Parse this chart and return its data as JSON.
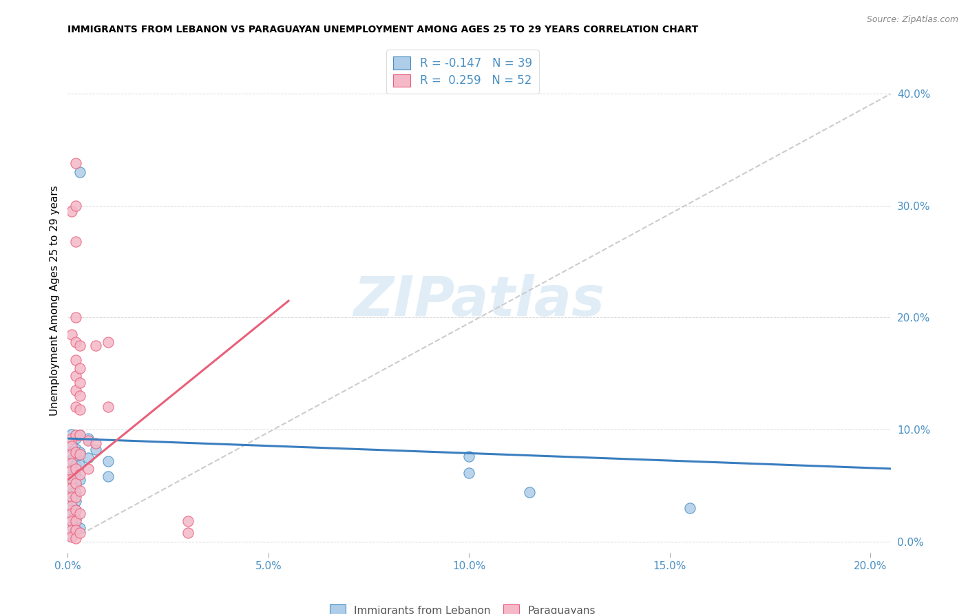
{
  "title": "IMMIGRANTS FROM LEBANON VS PARAGUAYAN UNEMPLOYMENT AMONG AGES 25 TO 29 YEARS CORRELATION CHART",
  "source": "Source: ZipAtlas.com",
  "ylabel": "Unemployment Among Ages 25 to 29 years",
  "xlim": [
    0,
    0.205
  ],
  "ylim": [
    -0.01,
    0.44
  ],
  "legend1_label": "R = -0.147   N = 39",
  "legend2_label": "R =  0.259   N = 52",
  "legend_bottom1": "Immigrants from Lebanon",
  "legend_bottom2": "Paraguayans",
  "blue_color": "#aecde8",
  "pink_color": "#f4b8c8",
  "blue_edge_color": "#4a90c4",
  "pink_edge_color": "#e8607a",
  "blue_line_color": "#3a7ebf",
  "pink_line_color": "#e8607a",
  "watermark": "ZIPatlas",
  "scatter_blue": [
    [
      0.001,
      0.096
    ],
    [
      0.001,
      0.088
    ],
    [
      0.001,
      0.08
    ],
    [
      0.001,
      0.073
    ],
    [
      0.001,
      0.065
    ],
    [
      0.001,
      0.058
    ],
    [
      0.001,
      0.05
    ],
    [
      0.001,
      0.043
    ],
    [
      0.001,
      0.036
    ],
    [
      0.001,
      0.028
    ],
    [
      0.001,
      0.02
    ],
    [
      0.001,
      0.013
    ],
    [
      0.001,
      0.006
    ],
    [
      0.002,
      0.092
    ],
    [
      0.002,
      0.083
    ],
    [
      0.002,
      0.076
    ],
    [
      0.002,
      0.068
    ],
    [
      0.002,
      0.06
    ],
    [
      0.002,
      0.052
    ],
    [
      0.002,
      0.044
    ],
    [
      0.002,
      0.036
    ],
    [
      0.002,
      0.028
    ],
    [
      0.002,
      0.02
    ],
    [
      0.002,
      0.012
    ],
    [
      0.003,
      0.33
    ],
    [
      0.003,
      0.095
    ],
    [
      0.003,
      0.08
    ],
    [
      0.003,
      0.068
    ],
    [
      0.003,
      0.055
    ],
    [
      0.003,
      0.012
    ],
    [
      0.005,
      0.092
    ],
    [
      0.005,
      0.075
    ],
    [
      0.007,
      0.082
    ],
    [
      0.01,
      0.072
    ],
    [
      0.01,
      0.058
    ],
    [
      0.1,
      0.076
    ],
    [
      0.1,
      0.061
    ],
    [
      0.115,
      0.044
    ],
    [
      0.155,
      0.03
    ]
  ],
  "scatter_pink": [
    [
      0.001,
      0.092
    ],
    [
      0.001,
      0.085
    ],
    [
      0.001,
      0.078
    ],
    [
      0.001,
      0.07
    ],
    [
      0.001,
      0.063
    ],
    [
      0.001,
      0.056
    ],
    [
      0.001,
      0.048
    ],
    [
      0.001,
      0.04
    ],
    [
      0.001,
      0.032
    ],
    [
      0.001,
      0.025
    ],
    [
      0.001,
      0.018
    ],
    [
      0.001,
      0.01
    ],
    [
      0.001,
      0.004
    ],
    [
      0.001,
      0.295
    ],
    [
      0.001,
      0.185
    ],
    [
      0.002,
      0.338
    ],
    [
      0.002,
      0.3
    ],
    [
      0.002,
      0.268
    ],
    [
      0.002,
      0.2
    ],
    [
      0.002,
      0.178
    ],
    [
      0.002,
      0.162
    ],
    [
      0.002,
      0.148
    ],
    [
      0.002,
      0.135
    ],
    [
      0.002,
      0.12
    ],
    [
      0.002,
      0.095
    ],
    [
      0.002,
      0.08
    ],
    [
      0.002,
      0.065
    ],
    [
      0.002,
      0.052
    ],
    [
      0.002,
      0.04
    ],
    [
      0.002,
      0.028
    ],
    [
      0.002,
      0.018
    ],
    [
      0.002,
      0.01
    ],
    [
      0.002,
      0.003
    ],
    [
      0.003,
      0.175
    ],
    [
      0.003,
      0.155
    ],
    [
      0.003,
      0.142
    ],
    [
      0.003,
      0.13
    ],
    [
      0.003,
      0.118
    ],
    [
      0.003,
      0.095
    ],
    [
      0.003,
      0.078
    ],
    [
      0.003,
      0.06
    ],
    [
      0.003,
      0.045
    ],
    [
      0.003,
      0.025
    ],
    [
      0.003,
      0.008
    ],
    [
      0.005,
      0.09
    ],
    [
      0.005,
      0.065
    ],
    [
      0.007,
      0.175
    ],
    [
      0.007,
      0.088
    ],
    [
      0.01,
      0.178
    ],
    [
      0.01,
      0.12
    ],
    [
      0.03,
      0.018
    ],
    [
      0.03,
      0.008
    ]
  ],
  "blue_trend_x": [
    0.0,
    0.205
  ],
  "blue_trend_y": [
    0.092,
    0.065
  ],
  "pink_trend_x": [
    0.0,
    0.055
  ],
  "pink_trend_y": [
    0.055,
    0.215
  ],
  "grey_trend_x": [
    0.0,
    0.205
  ],
  "grey_trend_y": [
    0.0,
    0.4
  ]
}
